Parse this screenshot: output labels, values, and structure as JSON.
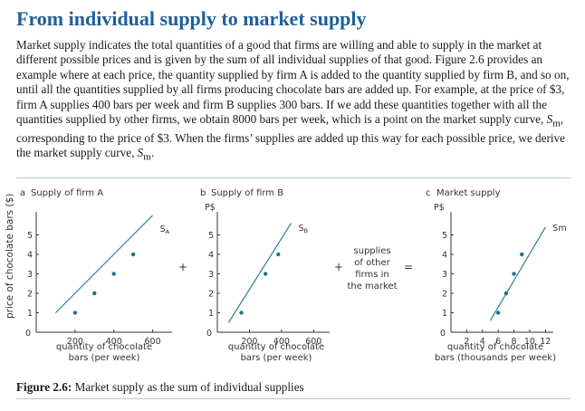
{
  "heading": "From individual supply to market supply",
  "paragraph": {
    "before_sm1": "Market supply indicates the total quantities of a good that firms are willing and able to supply in the market at different possible prices and is given by the sum of all individual supplies of that good. Figure 2.6 provides an example where at each price, the quantity supplied by firm A is added to the quantity supplied by firm B, and so on, until all the quantities supplied by all firms producing chocolate bars are added up. For example, at the price of $3, firm A supplies 400 bars per week and firm B supplies 300 bars. If we add these quantities together with all the quantities supplied by other firms, we obtain 8000 bars per week, which is a point on the market supply curve, ",
    "sm_symbol": "S",
    "sm_sub": "m",
    "middle": ", corresponding to the price of $3. When the firms’ supplies are added up this way for each possible price, we derive the market supply curve, ",
    "end": "."
  },
  "figure": {
    "y_axis_label": "price of chocolate bars ($)",
    "plus_sign": "+",
    "equals_sign": "=",
    "middle_note": [
      "supplies",
      "of other",
      "firms in",
      "the market"
    ],
    "caption_label": "Figure 2.6:",
    "caption_text": " Market supply as the sum of individual supplies"
  },
  "chart_data": [
    {
      "type": "line",
      "panel": "a",
      "title": "Supply of firm A",
      "curve_label": "S",
      "curve_sub": "A",
      "xlabel": [
        "quantity of chocolate",
        "bars (per week)"
      ],
      "ylabel": "price of chocolate bars ($)",
      "xlim": [
        0,
        700
      ],
      "ylim": [
        0,
        6
      ],
      "xticks": [
        200,
        400,
        600
      ],
      "yticks": [
        1,
        2,
        3,
        4,
        5
      ],
      "origin_label": "0",
      "x": [
        100,
        200,
        300,
        400,
        500,
        600
      ],
      "y": [
        1,
        2,
        3,
        4,
        5,
        6
      ],
      "points": [
        {
          "x": 200,
          "y": 1
        },
        {
          "x": 300,
          "y": 2
        },
        {
          "x": 400,
          "y": 3
        },
        {
          "x": 500,
          "y": 4
        }
      ]
    },
    {
      "type": "line",
      "panel": "b",
      "title": "Supply of firm B",
      "y_unit": "P$",
      "curve_label": "S",
      "curve_sub": "B",
      "xlabel": [
        "quantity of chocolate",
        "bars (per week)"
      ],
      "xlim": [
        0,
        700
      ],
      "ylim": [
        0,
        6
      ],
      "xticks": [
        200,
        400,
        600
      ],
      "yticks": [
        1,
        2,
        3,
        4,
        5
      ],
      "origin_label": "0",
      "x": [
        70,
        460
      ],
      "y": [
        0.5,
        5.6
      ],
      "points": [
        {
          "x": 150,
          "y": 1
        },
        {
          "x": 300,
          "y": 3
        },
        {
          "x": 380,
          "y": 4
        }
      ]
    },
    {
      "type": "line",
      "panel": "c",
      "title": "Market supply",
      "y_unit": "P$",
      "curve_label": "Sm",
      "xlabel": [
        "quantity of chocolate",
        "bars (thousands per week)"
      ],
      "xlim": [
        0,
        13
      ],
      "ylim": [
        0,
        6
      ],
      "xticks": [
        2,
        4,
        6,
        8,
        10,
        12
      ],
      "yticks": [
        1,
        2,
        3,
        4,
        5
      ],
      "origin_label": "0",
      "x": [
        5,
        12
      ],
      "y": [
        0.6,
        5.4
      ],
      "points": [
        {
          "x": 6,
          "y": 1
        },
        {
          "x": 7,
          "y": 2
        },
        {
          "x": 8,
          "y": 3
        },
        {
          "x": 9,
          "y": 4
        }
      ]
    }
  ]
}
